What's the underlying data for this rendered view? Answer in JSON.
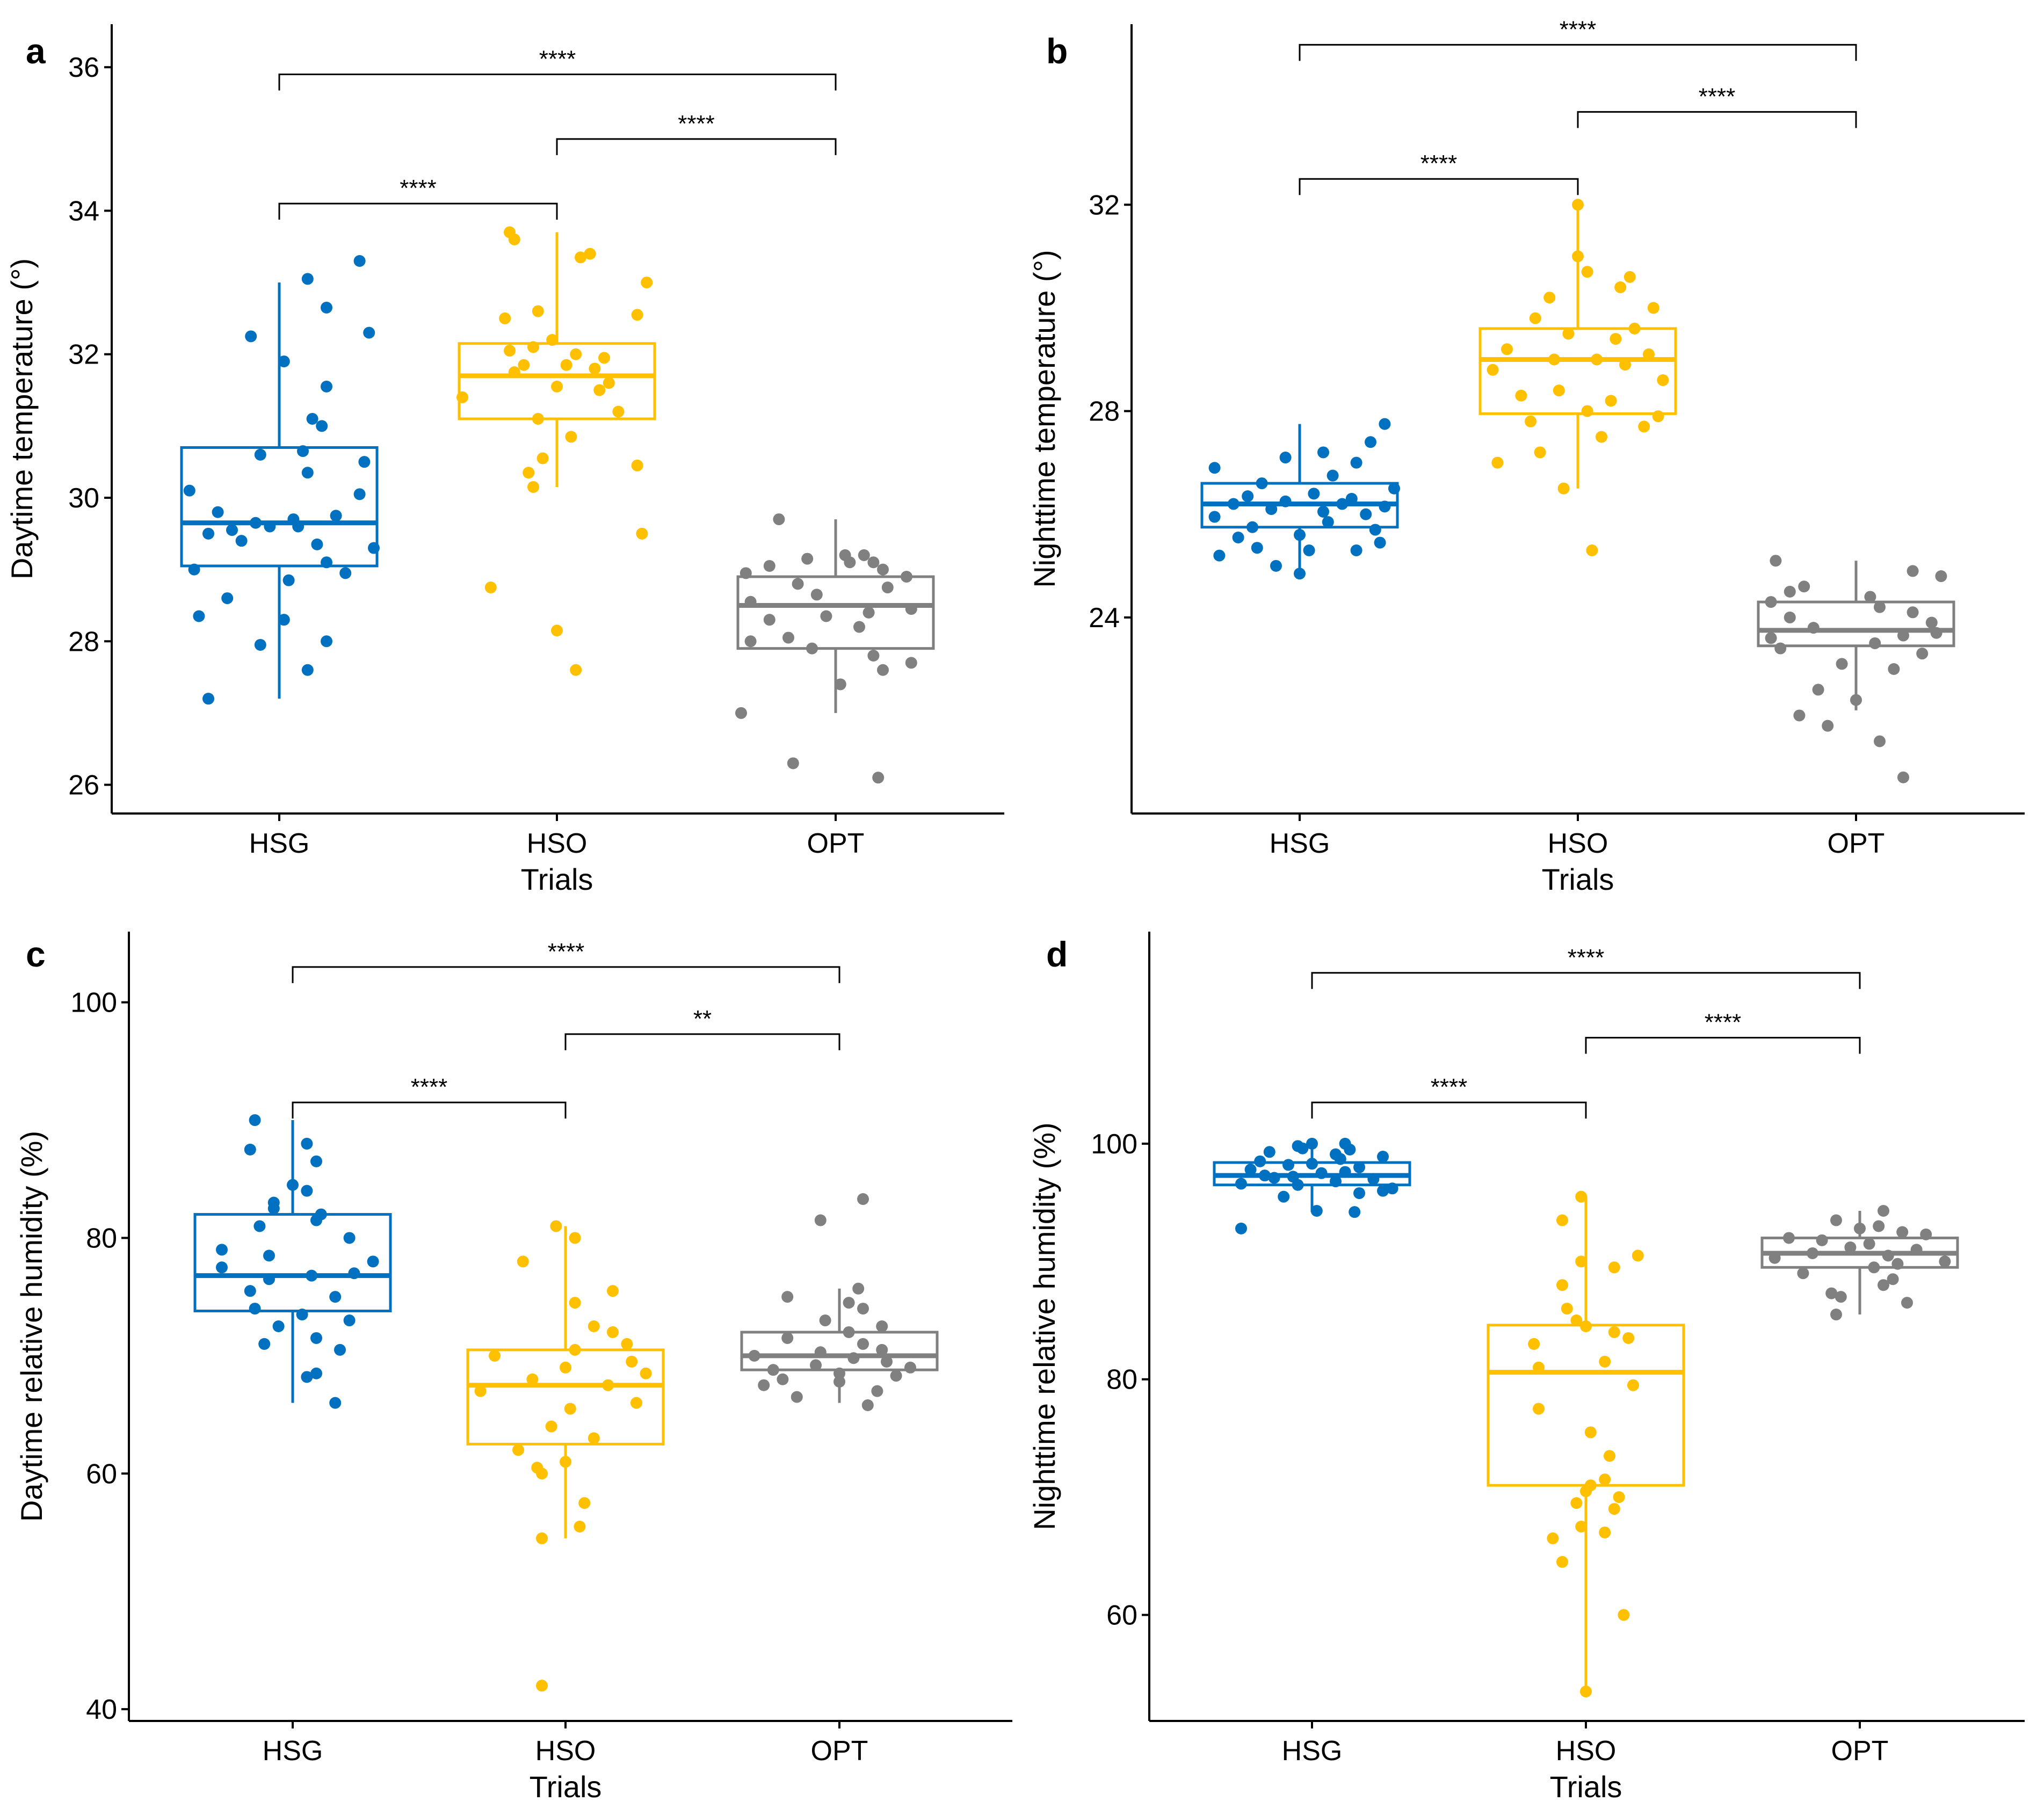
{
  "colors": {
    "HSG": "#0070C0",
    "HSO": "#FFC000",
    "OPT": "#808080",
    "axis": "#000000"
  },
  "chart_data": [
    {
      "panel": "a",
      "type": "boxplot",
      "xlabel": "Trials",
      "ylabel": "Daytime temperature (°)",
      "categories": [
        "HSG",
        "HSO",
        "OPT"
      ],
      "ylim": [
        25.6,
        36.6
      ],
      "yticks": [
        26,
        28,
        30,
        32,
        34,
        36
      ],
      "boxes": [
        {
          "name": "HSG",
          "q1": 29.05,
          "median": 29.65,
          "q3": 30.7,
          "whisker_low": 27.2,
          "whisker_high": 33.0
        },
        {
          "name": "HSO",
          "q1": 31.1,
          "median": 31.7,
          "q3": 32.15,
          "whisker_low": 30.15,
          "whisker_high": 33.7
        },
        {
          "name": "OPT",
          "q1": 27.9,
          "median": 28.5,
          "q3": 28.9,
          "whisker_low": 27.0,
          "whisker_high": 29.7
        }
      ],
      "points": [
        {
          "name": "HSG",
          "values": [
            27.2,
            28.0,
            27.6,
            27.95,
            28.35,
            28.6,
            28.3,
            28.85,
            28.95,
            29.0,
            29.1,
            29.3,
            29.35,
            29.4,
            29.5,
            29.55,
            29.6,
            29.6,
            29.65,
            29.7,
            29.75,
            29.8,
            30.05,
            30.1,
            30.35,
            30.5,
            30.6,
            30.65,
            31.0,
            31.1,
            31.55,
            31.9,
            32.25,
            32.3,
            32.65,
            33.05,
            33.3
          ],
          "offsets": [
            -0.15,
            0.1,
            0.06,
            -0.04,
            -0.17,
            -0.11,
            0.01,
            0.02,
            0.14,
            -0.18,
            0.1,
            0.2,
            0.08,
            -0.08,
            -0.15,
            -0.1,
            -0.02,
            0.04,
            -0.05,
            0.03,
            0.12,
            -0.13,
            0.17,
            -0.19,
            0.06,
            0.18,
            -0.04,
            0.05,
            0.09,
            0.07,
            0.1,
            0.01,
            -0.06,
            0.19,
            0.1,
            0.06,
            0.17
          ]
        },
        {
          "name": "HSO",
          "values": [
            27.6,
            28.15,
            28.75,
            29.5,
            30.15,
            30.35,
            30.45,
            30.55,
            30.85,
            31.1,
            31.2,
            31.4,
            31.5,
            31.55,
            31.6,
            31.75,
            31.8,
            31.85,
            31.85,
            31.95,
            32.0,
            32.05,
            32.1,
            32.2,
            32.5,
            32.55,
            32.6,
            33.0,
            33.35,
            33.4,
            33.6,
            33.7
          ],
          "offsets": [
            0.04,
            0.0,
            -0.14,
            0.18,
            -0.05,
            -0.06,
            0.17,
            -0.03,
            0.03,
            -0.04,
            0.13,
            -0.2,
            0.09,
            0.0,
            0.11,
            -0.09,
            0.08,
            -0.07,
            0.02,
            0.1,
            0.04,
            -0.1,
            -0.05,
            -0.01,
            -0.11,
            0.17,
            -0.04,
            0.19,
            0.05,
            0.07,
            -0.09,
            -0.1
          ]
        },
        {
          "name": "OPT",
          "values": [
            26.1,
            26.3,
            27.0,
            27.4,
            27.6,
            27.7,
            27.8,
            27.9,
            28.0,
            28.05,
            28.2,
            28.3,
            28.35,
            28.4,
            28.45,
            28.55,
            28.65,
            28.75,
            28.8,
            28.9,
            28.95,
            29.0,
            29.05,
            29.1,
            29.1,
            29.15,
            29.2,
            29.2,
            29.7
          ],
          "offsets": [
            0.09,
            -0.09,
            -0.2,
            0.01,
            0.1,
            0.16,
            0.08,
            -0.05,
            -0.18,
            -0.1,
            0.05,
            -0.14,
            -0.02,
            0.07,
            0.16,
            -0.18,
            -0.04,
            0.11,
            -0.08,
            0.15,
            -0.19,
            0.1,
            -0.14,
            0.03,
            0.08,
            -0.06,
            0.02,
            0.06,
            -0.12
          ]
        }
      ],
      "brackets": [
        {
          "from": 0,
          "to": 1,
          "y": 34.1,
          "label": "****"
        },
        {
          "from": 1,
          "to": 2,
          "y": 35.0,
          "label": "****"
        },
        {
          "from": 0,
          "to": 2,
          "y": 35.9,
          "label": "****"
        }
      ]
    },
    {
      "panel": "b",
      "type": "boxplot",
      "xlabel": "Trials",
      "ylabel": "Nighttime temperature (°)",
      "categories": [
        "HSG",
        "HSO",
        "OPT"
      ],
      "ylim": [
        20.2,
        35.5
      ],
      "yticks": [
        24,
        28,
        32
      ],
      "boxes": [
        {
          "name": "HSG",
          "q1": 25.75,
          "median": 26.2,
          "q3": 26.6,
          "whisker_low": 24.9,
          "whisker_high": 27.75
        },
        {
          "name": "HSO",
          "q1": 27.95,
          "median": 29.0,
          "q3": 29.6,
          "whisker_low": 26.5,
          "whisker_high": 32.0
        },
        {
          "name": "OPT",
          "q1": 23.45,
          "median": 23.75,
          "q3": 24.3,
          "whisker_low": 22.2,
          "whisker_high": 25.1
        }
      ],
      "points": [
        {
          "name": "HSG",
          "values": [
            24.85,
            25.0,
            25.2,
            25.3,
            25.3,
            25.35,
            25.45,
            25.55,
            25.6,
            25.7,
            25.75,
            25.85,
            25.95,
            26.0,
            26.05,
            26.1,
            26.15,
            26.2,
            26.2,
            26.25,
            26.3,
            26.35,
            26.4,
            26.5,
            26.6,
            26.75,
            26.9,
            27.0,
            27.1,
            27.2,
            27.4,
            27.75
          ],
          "offsets": [
            0.0,
            -0.05,
            -0.17,
            0.12,
            0.02,
            -0.09,
            0.17,
            -0.13,
            0.0,
            0.16,
            -0.1,
            0.06,
            -0.18,
            0.14,
            0.05,
            -0.06,
            0.18,
            -0.14,
            0.09,
            -0.03,
            0.11,
            -0.11,
            0.03,
            0.2,
            -0.08,
            0.07,
            -0.18,
            0.12,
            -0.03,
            0.05,
            0.15,
            0.18
          ]
        },
        {
          "name": "HSO",
          "values": [
            25.3,
            26.5,
            27.0,
            27.2,
            27.5,
            27.7,
            27.8,
            27.9,
            28.0,
            28.2,
            28.3,
            28.4,
            28.6,
            28.8,
            28.9,
            29.0,
            29.0,
            29.1,
            29.2,
            29.4,
            29.5,
            29.6,
            29.8,
            30.0,
            30.2,
            30.4,
            30.6,
            30.7,
            31.0,
            32.0
          ],
          "offsets": [
            0.03,
            -0.03,
            -0.17,
            -0.08,
            0.05,
            0.14,
            -0.1,
            0.17,
            0.02,
            0.07,
            -0.12,
            -0.04,
            0.18,
            -0.18,
            0.1,
            -0.05,
            0.04,
            0.15,
            -0.15,
            0.08,
            -0.02,
            0.12,
            -0.09,
            0.16,
            -0.06,
            0.09,
            0.11,
            0.02,
            0.0,
            0.0
          ]
        },
        {
          "name": "OPT",
          "values": [
            20.9,
            21.6,
            21.9,
            22.1,
            22.4,
            22.6,
            23.0,
            23.1,
            23.3,
            23.4,
            23.5,
            23.6,
            23.65,
            23.7,
            23.8,
            23.9,
            24.0,
            24.1,
            24.2,
            24.3,
            24.4,
            24.5,
            24.6,
            24.8,
            24.9,
            25.1
          ],
          "offsets": [
            0.1,
            0.05,
            -0.06,
            -0.12,
            0.0,
            -0.08,
            0.08,
            -0.03,
            0.14,
            -0.16,
            0.04,
            -0.18,
            0.1,
            0.17,
            -0.09,
            0.16,
            -0.14,
            0.12,
            0.05,
            -0.18,
            0.03,
            -0.14,
            -0.11,
            0.18,
            0.12,
            -0.17
          ]
        }
      ],
      "brackets": [
        {
          "from": 0,
          "to": 1,
          "y": 32.5,
          "label": "****"
        },
        {
          "from": 1,
          "to": 2,
          "y": 33.8,
          "label": "****"
        },
        {
          "from": 0,
          "to": 2,
          "y": 35.1,
          "label": "****"
        }
      ]
    },
    {
      "panel": "c",
      "type": "boxplot",
      "xlabel": "Trials",
      "ylabel": "Daytime relative humidity (%)",
      "categories": [
        "HSG",
        "HSO",
        "OPT"
      ],
      "ylim": [
        39,
        106
      ],
      "yticks": [
        40,
        60,
        80,
        100
      ],
      "boxes": [
        {
          "name": "HSG",
          "q1": 73.8,
          "median": 76.8,
          "q3": 82.0,
          "whisker_low": 66.0,
          "whisker_high": 90.0
        },
        {
          "name": "HSO",
          "q1": 62.5,
          "median": 67.5,
          "q3": 70.5,
          "whisker_low": 54.5,
          "whisker_high": 81.0
        },
        {
          "name": "OPT",
          "q1": 68.8,
          "median": 70.0,
          "q3": 72.0,
          "whisker_low": 66.0,
          "whisker_high": 75.7
        }
      ],
      "points": [
        {
          "name": "HSG",
          "values": [
            66.0,
            68.2,
            68.5,
            70.5,
            71.0,
            71.5,
            72.5,
            73.0,
            73.5,
            74.0,
            75.0,
            75.5,
            76.5,
            76.8,
            77.0,
            77.5,
            78.0,
            78.5,
            79.0,
            80.0,
            81.0,
            81.5,
            82.0,
            82.5,
            83.0,
            84.0,
            84.5,
            86.5,
            87.5,
            88.0,
            90.0
          ],
          "offsets": [
            0.09,
            0.03,
            0.05,
            0.1,
            -0.06,
            0.05,
            -0.03,
            0.12,
            0.02,
            -0.08,
            0.09,
            -0.09,
            -0.05,
            0.04,
            0.13,
            -0.15,
            0.17,
            -0.05,
            -0.15,
            0.12,
            -0.07,
            0.05,
            0.06,
            -0.04,
            -0.04,
            0.03,
            0.0,
            0.05,
            -0.09,
            0.03,
            -0.08
          ]
        },
        {
          "name": "HSO",
          "values": [
            42.0,
            54.5,
            55.5,
            57.5,
            60.0,
            60.5,
            61.0,
            62.0,
            63.0,
            64.0,
            65.5,
            66.0,
            67.0,
            67.5,
            68.0,
            68.5,
            69.0,
            69.5,
            70.0,
            70.5,
            71.0,
            72.0,
            72.5,
            74.5,
            75.5,
            78.0,
            80.0,
            81.0
          ],
          "offsets": [
            -0.05,
            -0.05,
            0.03,
            0.04,
            -0.05,
            -0.06,
            0.0,
            -0.1,
            0.06,
            -0.03,
            0.01,
            0.15,
            -0.18,
            0.09,
            -0.07,
            0.17,
            0.0,
            0.14,
            -0.15,
            0.02,
            0.13,
            0.1,
            0.06,
            0.02,
            0.1,
            -0.09,
            0.02,
            -0.02
          ]
        },
        {
          "name": "OPT",
          "values": [
            65.8,
            66.5,
            67.0,
            67.5,
            67.8,
            68.0,
            68.3,
            68.5,
            68.8,
            69.0,
            69.2,
            69.5,
            69.8,
            70.0,
            70.3,
            70.5,
            71.0,
            71.5,
            72.0,
            72.5,
            73.0,
            74.0,
            74.5,
            75.0,
            75.7,
            81.5,
            83.3
          ],
          "offsets": [
            0.06,
            -0.09,
            0.08,
            -0.16,
            0.0,
            -0.12,
            0.12,
            0.0,
            -0.14,
            0.15,
            -0.05,
            0.1,
            0.03,
            -0.18,
            -0.04,
            0.09,
            0.05,
            -0.11,
            0.02,
            0.09,
            -0.03,
            0.05,
            0.02,
            -0.11,
            0.04,
            -0.04,
            0.05
          ]
        }
      ],
      "brackets": [
        {
          "from": 0,
          "to": 1,
          "y": 91.5,
          "label": "****"
        },
        {
          "from": 1,
          "to": 2,
          "y": 97.3,
          "label": "**"
        },
        {
          "from": 0,
          "to": 2,
          "y": 103.0,
          "label": "****"
        }
      ]
    },
    {
      "panel": "d",
      "type": "boxplot",
      "xlabel": "Trials",
      "ylabel": "Nighttime relative humidity (%)",
      "categories": [
        "HSG",
        "HSO",
        "OPT"
      ],
      "ylim": [
        51,
        118
      ],
      "yticks": [
        60,
        80,
        100
      ],
      "boxes": [
        {
          "name": "HSG",
          "q1": 96.5,
          "median": 97.3,
          "q3": 98.4,
          "whisker_low": 94.2,
          "whisker_high": 100.0
        },
        {
          "name": "HSO",
          "q1": 71.0,
          "median": 80.6,
          "q3": 84.6,
          "whisker_low": 53.5,
          "whisker_high": 95.5
        },
        {
          "name": "OPT",
          "q1": 89.5,
          "median": 90.7,
          "q3": 92.0,
          "whisker_low": 85.5,
          "whisker_high": 94.3
        }
      ],
      "points": [
        {
          "name": "HSG",
          "values": [
            92.8,
            94.2,
            94.3,
            95.5,
            95.8,
            96.0,
            96.2,
            96.5,
            96.8,
            97.0,
            97.1,
            97.2,
            97.3,
            97.5,
            97.6,
            97.8,
            98.0,
            98.2,
            98.3,
            98.5,
            98.7,
            98.9,
            99.1,
            99.3,
            99.5,
            99.8,
            100.0,
            100.0,
            99.6,
            96.6
          ],
          "offsets": [
            -0.15,
            0.09,
            0.01,
            -0.06,
            0.1,
            0.15,
            0.17,
            -0.03,
            0.05,
            0.13,
            -0.08,
            -0.04,
            -0.1,
            0.02,
            0.07,
            -0.13,
            0.1,
            -0.05,
            0.0,
            -0.11,
            0.06,
            0.15,
            0.05,
            -0.09,
            0.08,
            -0.03,
            0.0,
            0.07,
            -0.02,
            -0.15
          ]
        },
        {
          "name": "HSO",
          "values": [
            53.5,
            60.0,
            64.5,
            66.5,
            67.0,
            67.5,
            69.0,
            69.5,
            70.0,
            70.5,
            71.0,
            71.5,
            73.5,
            75.5,
            77.5,
            79.5,
            81.0,
            81.5,
            83.0,
            83.5,
            84.0,
            84.5,
            85.0,
            86.0,
            88.0,
            89.5,
            90.0,
            90.5,
            93.5,
            95.5
          ],
          "offsets": [
            0.0,
            0.08,
            -0.05,
            -0.07,
            0.04,
            -0.01,
            0.06,
            -0.02,
            0.07,
            0.0,
            0.01,
            0.04,
            0.05,
            0.01,
            -0.1,
            0.1,
            -0.1,
            0.04,
            -0.11,
            0.09,
            0.06,
            0.0,
            -0.02,
            -0.04,
            -0.05,
            0.06,
            -0.01,
            0.11,
            -0.05,
            -0.01
          ]
        },
        {
          "name": "OPT",
          "values": [
            85.5,
            86.5,
            87.0,
            87.3,
            88.0,
            88.5,
            89.0,
            89.5,
            89.8,
            90.0,
            90.3,
            90.5,
            90.7,
            91.0,
            91.2,
            91.5,
            91.8,
            92.0,
            92.3,
            92.5,
            92.8,
            93.0,
            93.5,
            94.3
          ],
          "offsets": [
            -0.05,
            0.1,
            -0.04,
            -0.06,
            0.05,
            0.07,
            -0.12,
            0.03,
            0.08,
            0.18,
            -0.18,
            0.06,
            -0.1,
            0.12,
            -0.02,
            0.02,
            -0.08,
            -0.15,
            0.14,
            0.09,
            0.0,
            0.04,
            -0.05,
            0.05
          ]
        }
      ],
      "brackets": [
        {
          "from": 0,
          "to": 1,
          "y": 103.5,
          "label": "****"
        },
        {
          "from": 1,
          "to": 2,
          "y": 109.0,
          "label": "****"
        },
        {
          "from": 0,
          "to": 2,
          "y": 114.5,
          "label": "****"
        }
      ]
    }
  ]
}
